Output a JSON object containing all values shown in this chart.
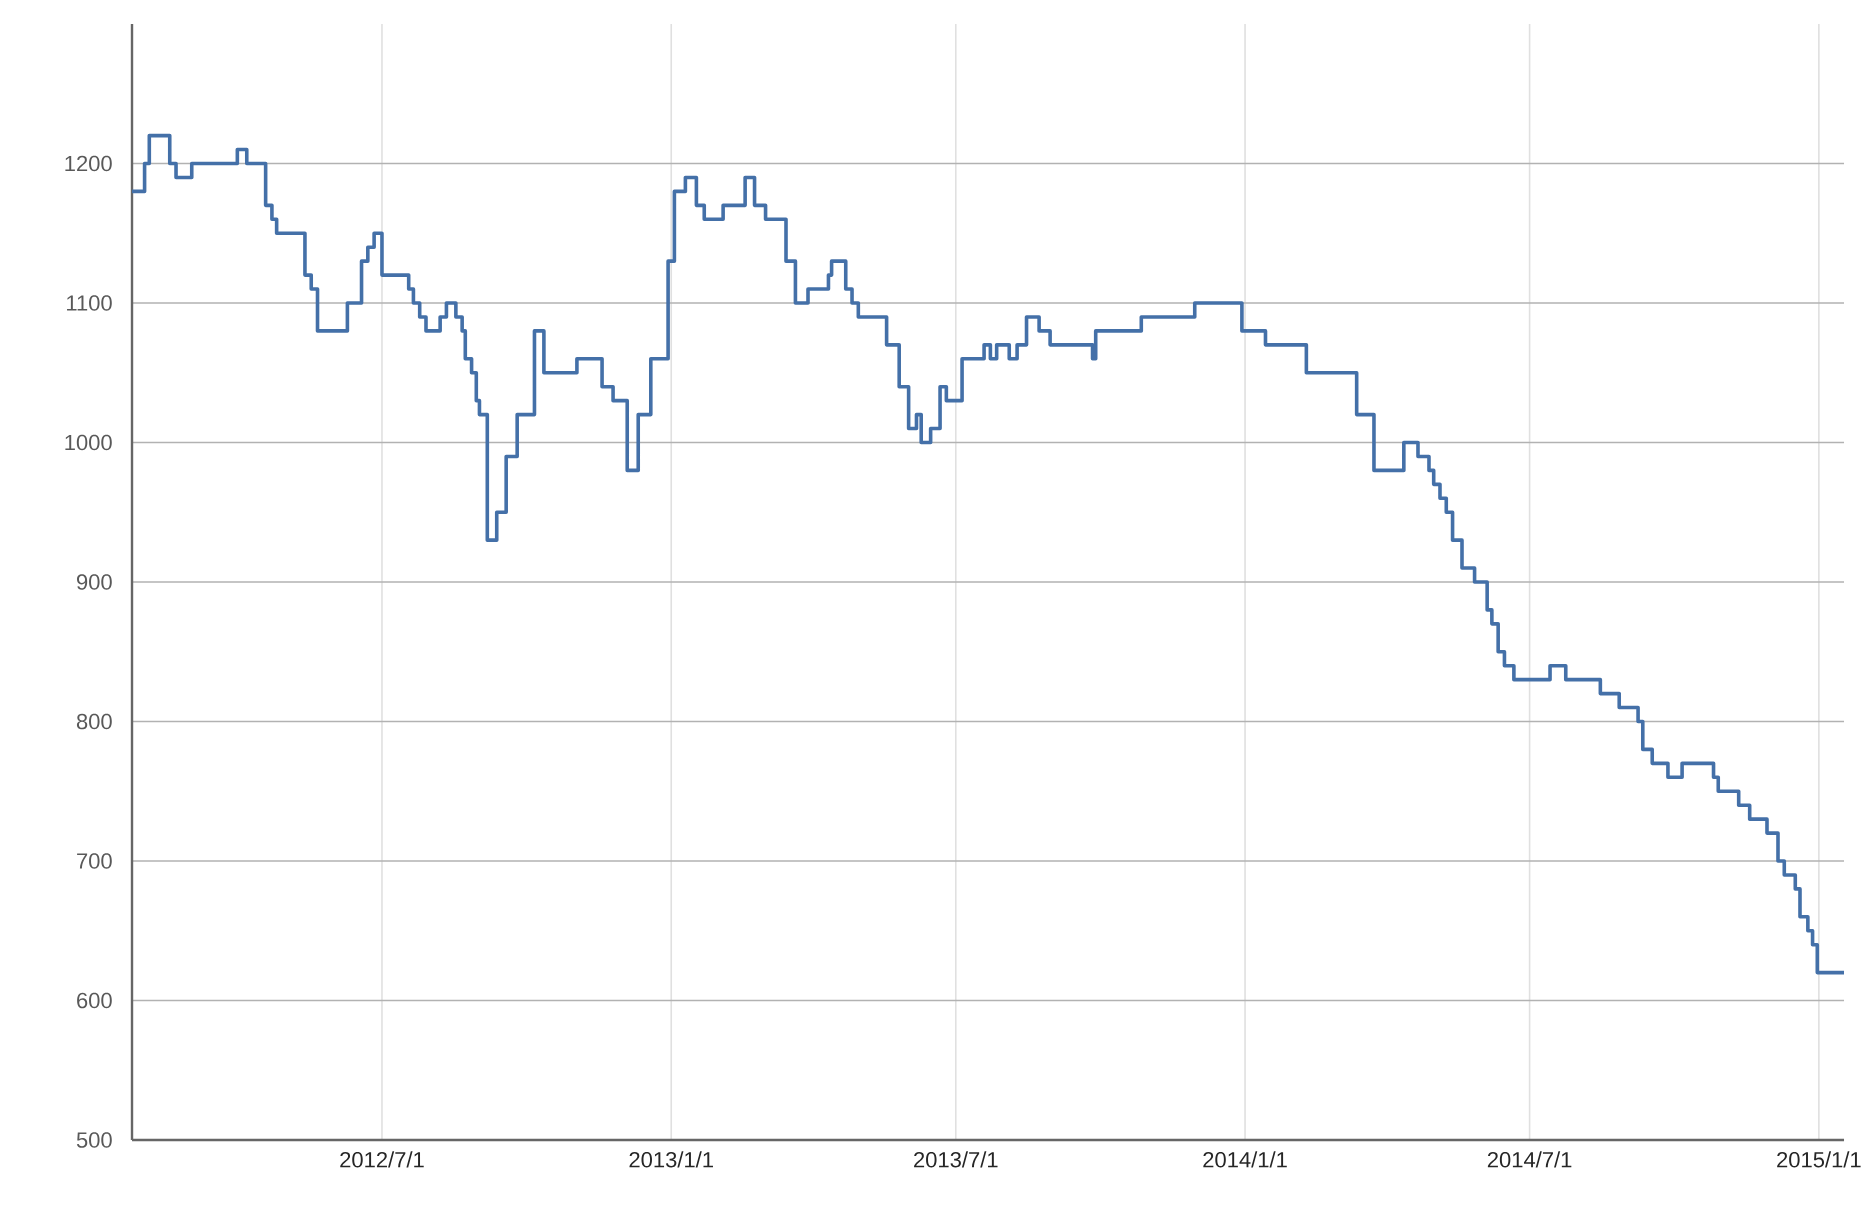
{
  "chart_data": {
    "type": "step",
    "color": "#4470a8",
    "grid": true,
    "marker": "none",
    "line_style": "solid",
    "xlim": [
      "2012-01-24",
      "2015-01-17"
    ],
    "ylim": [
      500,
      1300
    ],
    "xticks": [
      {
        "value": "2012-07-01",
        "label": "2012/7/1"
      },
      {
        "value": "2013-01-01",
        "label": "2013/1/1"
      },
      {
        "value": "2013-07-01",
        "label": "2013/7/1"
      },
      {
        "value": "2014-01-01",
        "label": "2014/1/1"
      },
      {
        "value": "2014-07-01",
        "label": "2014/7/1"
      },
      {
        "value": "2015-01-01",
        "label": "2015/1/1"
      }
    ],
    "yticks": [
      500,
      600,
      700,
      800,
      900,
      1000,
      1100,
      1200
    ],
    "x": [
      "2012-01-24",
      "2012-02-01",
      "2012-02-04",
      "2012-02-17",
      "2012-02-21",
      "2012-03-02",
      "2012-03-31",
      "2012-04-06",
      "2012-04-18",
      "2012-04-22",
      "2012-04-25",
      "2012-05-13",
      "2012-05-17",
      "2012-05-21",
      "2012-06-09",
      "2012-06-18",
      "2012-06-22",
      "2012-06-26",
      "2012-07-01",
      "2012-07-18",
      "2012-07-21",
      "2012-07-25",
      "2012-07-29",
      "2012-08-07",
      "2012-08-11",
      "2012-08-17",
      "2012-08-21",
      "2012-08-23",
      "2012-08-27",
      "2012-08-30",
      "2012-09-01",
      "2012-09-06",
      "2012-09-12",
      "2012-09-18",
      "2012-09-25",
      "2012-10-06",
      "2012-10-12",
      "2012-11-02",
      "2012-11-18",
      "2012-11-25",
      "2012-12-04",
      "2012-12-11",
      "2012-12-19",
      "2012-12-30",
      "2013-01-03",
      "2013-01-10",
      "2013-01-17",
      "2013-01-22",
      "2013-02-03",
      "2013-02-17",
      "2013-02-23",
      "2013-03-02",
      "2013-03-15",
      "2013-03-21",
      "2013-03-29",
      "2013-04-11",
      "2013-04-13",
      "2013-04-22",
      "2013-04-26",
      "2013-04-30",
      "2013-05-18",
      "2013-05-26",
      "2013-06-01",
      "2013-06-06",
      "2013-06-09",
      "2013-06-15",
      "2013-06-21",
      "2013-06-25",
      "2013-07-05",
      "2013-07-19",
      "2013-07-23",
      "2013-07-27",
      "2013-08-04",
      "2013-08-09",
      "2013-08-15",
      "2013-08-23",
      "2013-08-30",
      "2013-09-26",
      "2013-09-28",
      "2013-10-27",
      "2013-11-30",
      "2013-12-30",
      "2014-01-14",
      "2014-02-09",
      "2014-03-13",
      "2014-03-24",
      "2014-04-12",
      "2014-04-21",
      "2014-04-28",
      "2014-05-01",
      "2014-05-05",
      "2014-05-09",
      "2014-05-13",
      "2014-05-19",
      "2014-05-27",
      "2014-06-04",
      "2014-06-07",
      "2014-06-11",
      "2014-06-15",
      "2014-06-21",
      "2014-07-14",
      "2014-07-24",
      "2014-08-15",
      "2014-08-27",
      "2014-09-08",
      "2014-09-11",
      "2014-09-17",
      "2014-09-27",
      "2014-10-06",
      "2014-10-26",
      "2014-10-29",
      "2014-11-11",
      "2014-11-18",
      "2014-11-29",
      "2014-12-06",
      "2014-12-10",
      "2014-12-17",
      "2014-12-20",
      "2014-12-25",
      "2014-12-28",
      "2014-12-31",
      "2015-01-17"
    ],
    "values": [
      1180,
      1200,
      1220,
      1200,
      1190,
      1200,
      1210,
      1200,
      1170,
      1160,
      1150,
      1120,
      1110,
      1080,
      1100,
      1130,
      1140,
      1150,
      1120,
      1110,
      1100,
      1090,
      1080,
      1090,
      1100,
      1090,
      1080,
      1060,
      1050,
      1030,
      1020,
      930,
      950,
      990,
      1020,
      1080,
      1050,
      1060,
      1040,
      1030,
      980,
      1020,
      1060,
      1130,
      1180,
      1190,
      1170,
      1160,
      1170,
      1190,
      1170,
      1160,
      1130,
      1100,
      1110,
      1120,
      1130,
      1110,
      1100,
      1090,
      1070,
      1040,
      1010,
      1020,
      1000,
      1010,
      1040,
      1030,
      1060,
      1070,
      1060,
      1070,
      1060,
      1070,
      1090,
      1080,
      1070,
      1060,
      1080,
      1090,
      1100,
      1080,
      1070,
      1050,
      1020,
      980,
      1000,
      990,
      980,
      970,
      960,
      950,
      930,
      910,
      900,
      880,
      870,
      850,
      840,
      830,
      840,
      830,
      820,
      810,
      800,
      780,
      770,
      760,
      770,
      760,
      750,
      740,
      730,
      720,
      700,
      690,
      680,
      660,
      650,
      640,
      620,
      620
    ]
  }
}
